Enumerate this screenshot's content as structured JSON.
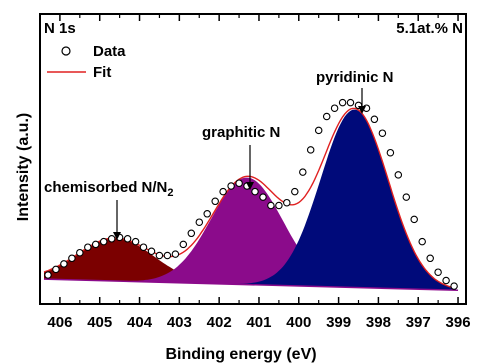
{
  "chart_data": {
    "type": "line",
    "panel_label": "N 1s",
    "corner_note": "5.1at.% N",
    "xlabel": "Binding energy (eV)",
    "ylabel": "Intensity (a.u.)",
    "xlim": [
      406.5,
      395.8
    ],
    "x_reversed": true,
    "ylim": [
      0,
      1
    ],
    "y_ticks_shown": false,
    "x_ticks": [
      406,
      405,
      404,
      403,
      402,
      401,
      400,
      399,
      398,
      397,
      396
    ],
    "legend": {
      "placement": "top-left",
      "entries": [
        {
          "label": "Data",
          "marker": "open-circle"
        },
        {
          "label": "Fit",
          "marker": "line",
          "color": "#e02020"
        }
      ]
    },
    "baseline": {
      "x": [
        406.4,
        396.0
      ],
      "y": [
        0.075,
        0.035
      ]
    },
    "components": [
      {
        "label": "chemisorbed N/N",
        "label_subscript": "2",
        "center": 404.6,
        "sigma": 0.95,
        "height": 0.155,
        "color": "#7b0000",
        "annotation_pos": "above-left"
      },
      {
        "label": "graphitic N",
        "center": 401.3,
        "sigma": 0.9,
        "height": 0.385,
        "color": "#8b0b8b",
        "annotation_pos": "above"
      },
      {
        "label": "pyridinic N",
        "center": 398.6,
        "sigma": 0.85,
        "height": 0.64,
        "color": "#000a7a",
        "annotation_pos": "above"
      }
    ],
    "data_points": {
      "x": [
        406.3,
        406.1,
        405.9,
        405.7,
        405.5,
        405.3,
        405.1,
        404.9,
        404.7,
        404.5,
        404.3,
        404.1,
        403.9,
        403.7,
        403.5,
        403.3,
        403.1,
        402.9,
        402.7,
        402.5,
        402.3,
        402.1,
        401.9,
        401.7,
        401.5,
        401.3,
        401.1,
        400.9,
        400.7,
        400.5,
        400.3,
        400.1,
        399.9,
        399.7,
        399.5,
        399.3,
        399.1,
        398.9,
        398.7,
        398.5,
        398.3,
        398.1,
        397.9,
        397.7,
        397.5,
        397.3,
        397.1,
        396.9,
        396.7,
        396.5,
        396.3,
        396.1
      ],
      "y": [
        0.09,
        0.11,
        0.13,
        0.15,
        0.17,
        0.19,
        0.2,
        0.21,
        0.22,
        0.225,
        0.22,
        0.21,
        0.19,
        0.175,
        0.16,
        0.16,
        0.165,
        0.2,
        0.24,
        0.28,
        0.31,
        0.355,
        0.39,
        0.41,
        0.42,
        0.41,
        0.39,
        0.37,
        0.34,
        0.34,
        0.35,
        0.39,
        0.46,
        0.54,
        0.61,
        0.66,
        0.69,
        0.71,
        0.71,
        0.7,
        0.69,
        0.65,
        0.6,
        0.53,
        0.45,
        0.37,
        0.29,
        0.21,
        0.15,
        0.1,
        0.07,
        0.05
      ]
    }
  }
}
